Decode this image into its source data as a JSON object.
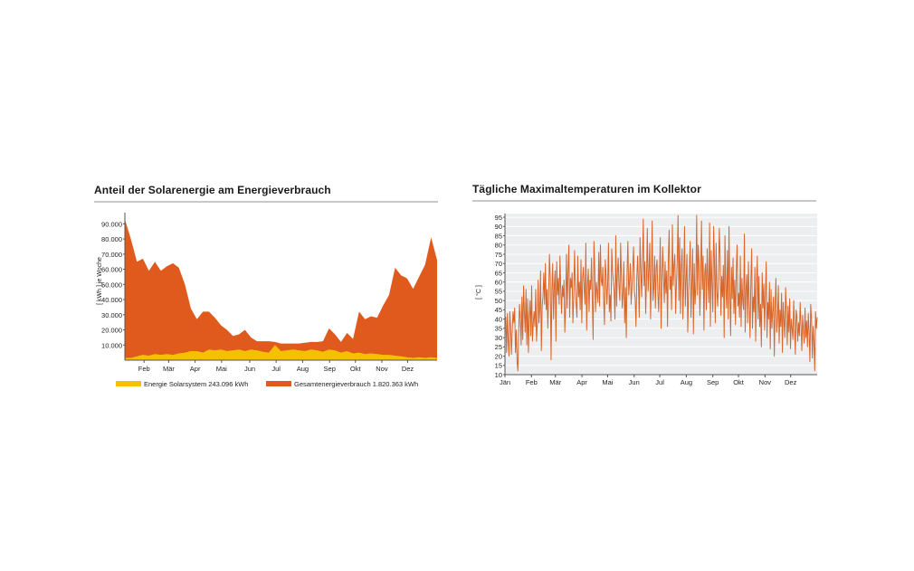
{
  "chart_data": [
    {
      "type": "area",
      "title": "Anteil der Solarenergie am Energieverbrauch",
      "ylabel": "[ kWh ] je Woche",
      "xlabel": "",
      "ylim": [
        0,
        95000
      ],
      "y_ticks": [
        10000,
        20000,
        30000,
        40000,
        50000,
        60000,
        70000,
        80000,
        90000
      ],
      "y_tick_labels": [
        "10.000",
        "20.000",
        "30.000",
        "40.000",
        "50.000",
        "60.000",
        "70.000",
        "80.000",
        "90.000"
      ],
      "x_range": [
        0,
        52
      ],
      "x_ticks": [
        {
          "label": "Feb",
          "week": 3.2
        },
        {
          "label": "Mär",
          "week": 7.3
        },
        {
          "label": "Apr",
          "week": 11.7
        },
        {
          "label": "Mai",
          "week": 16.1
        },
        {
          "label": "Jun",
          "week": 20.8
        },
        {
          "label": "Jul",
          "week": 25.2
        },
        {
          "label": "Aug",
          "week": 29.6
        },
        {
          "label": "Sep",
          "week": 34.1
        },
        {
          "label": "Okt",
          "week": 38.4
        },
        {
          "label": "Nov",
          "week": 42.8
        },
        {
          "label": "Dez",
          "week": 47.1
        }
      ],
      "grid": false,
      "legend_position": "bottom",
      "series": [
        {
          "name": "Gesamtenergieverbrauch 1.820.363 kWh",
          "color": "#e05a1e",
          "x": [
            0,
            1,
            2,
            3,
            4,
            5,
            6,
            7,
            8,
            9,
            10,
            11,
            12,
            13,
            14,
            15,
            16,
            17,
            18,
            19,
            20,
            21,
            22,
            23,
            24,
            25,
            26,
            27,
            28,
            29,
            30,
            31,
            32,
            33,
            34,
            35,
            36,
            37,
            38,
            39,
            40,
            41,
            42,
            43,
            44,
            45,
            46,
            47,
            48,
            49,
            50,
            51,
            52
          ],
          "values": [
            93000,
            80000,
            65000,
            67000,
            59000,
            65000,
            59000,
            62000,
            64000,
            61000,
            50000,
            34000,
            27000,
            32000,
            32000,
            28000,
            23000,
            20000,
            16000,
            17000,
            20000,
            15000,
            12500,
            12500,
            12500,
            12000,
            11000,
            11000,
            11000,
            11000,
            11500,
            12000,
            12000,
            12500,
            21000,
            17000,
            12000,
            18000,
            14000,
            32000,
            27000,
            29000,
            28000,
            36000,
            43000,
            61000,
            56000,
            54000,
            47000,
            55000,
            63000,
            81000,
            66000
          ]
        },
        {
          "name": "Energie Solarsystem 243.096 kWh",
          "color": "#f5c000",
          "x": [
            0,
            1,
            2,
            3,
            4,
            5,
            6,
            7,
            8,
            9,
            10,
            11,
            12,
            13,
            14,
            15,
            16,
            17,
            18,
            19,
            20,
            21,
            22,
            23,
            24,
            25,
            26,
            27,
            28,
            29,
            30,
            31,
            32,
            33,
            34,
            35,
            36,
            37,
            38,
            39,
            40,
            41,
            42,
            43,
            44,
            45,
            46,
            47,
            48,
            49,
            50,
            51,
            52
          ],
          "values": [
            1500,
            1500,
            2500,
            3500,
            3000,
            4000,
            3500,
            4000,
            3500,
            4500,
            5000,
            6000,
            6000,
            5000,
            7000,
            6500,
            7000,
            6000,
            6500,
            7000,
            6000,
            7000,
            6500,
            5500,
            5000,
            10000,
            6000,
            6500,
            7000,
            6500,
            6000,
            7000,
            6500,
            5500,
            7000,
            6500,
            5000,
            6000,
            4500,
            5000,
            4000,
            4500,
            4000,
            3500,
            3500,
            3000,
            2500,
            2000,
            1500,
            2000,
            1500,
            2000,
            1500
          ]
        }
      ]
    },
    {
      "type": "line",
      "title": "Tägliche Maximaltemperaturen im Kollektor",
      "ylabel": "[ °C ]",
      "xlabel": "",
      "ylim": [
        10,
        97
      ],
      "y_ticks": [
        10,
        15,
        20,
        25,
        30,
        35,
        40,
        45,
        50,
        55,
        60,
        65,
        70,
        75,
        80,
        85,
        90,
        95
      ],
      "x_range": [
        0,
        365
      ],
      "x_ticks": [
        {
          "label": "Jän",
          "day": 0
        },
        {
          "label": "Feb",
          "day": 31
        },
        {
          "label": "Mär",
          "day": 59
        },
        {
          "label": "Apr",
          "day": 90
        },
        {
          "label": "Mai",
          "day": 120
        },
        {
          "label": "Jun",
          "day": 151
        },
        {
          "label": "Jul",
          "day": 181
        },
        {
          "label": "Aug",
          "day": 212
        },
        {
          "label": "Sep",
          "day": 243
        },
        {
          "label": "Okt",
          "day": 273
        },
        {
          "label": "Nov",
          "day": 304
        },
        {
          "label": "Dez",
          "day": 334
        }
      ],
      "grid": true,
      "series": [
        {
          "color": "#d8662a",
          "values": [
            40,
            41,
            22,
            43,
            28,
            20,
            44,
            35,
            21,
            34,
            44,
            38,
            46,
            22,
            34,
            17,
            12,
            34,
            48,
            40,
            26,
            52,
            29,
            58,
            44,
            33,
            56,
            26,
            51,
            22,
            41,
            50,
            31,
            58,
            28,
            38,
            44,
            36,
            56,
            28,
            37,
            61,
            38,
            45,
            66,
            23,
            47,
            52,
            65,
            48,
            70,
            45,
            56,
            35,
            53,
            75,
            62,
            18,
            55,
            70,
            40,
            58,
            66,
            28,
            71,
            53,
            62,
            48,
            74,
            56,
            43,
            58,
            52,
            61,
            33,
            47,
            75,
            46,
            66,
            80,
            41,
            62,
            57,
            65,
            38,
            51,
            77,
            58,
            48,
            41,
            74,
            52,
            60,
            45,
            72,
            38,
            62,
            68,
            56,
            48,
            81,
            34,
            58,
            67,
            44,
            61,
            56,
            73,
            50,
            29,
            82,
            68,
            44,
            60,
            55,
            49,
            76,
            47,
            80,
            61,
            58,
            68,
            51,
            37,
            72,
            64,
            48,
            59,
            81,
            44,
            53,
            39,
            78,
            66,
            60,
            55,
            40,
            85,
            47,
            65,
            73,
            58,
            50,
            81,
            63,
            46,
            54,
            71,
            38,
            57,
            30,
            66,
            82,
            53,
            60,
            70,
            48,
            57,
            68,
            79,
            55,
            51,
            36,
            62,
            74,
            60,
            41,
            84,
            66,
            52,
            70,
            94,
            58,
            71,
            43,
            62,
            89,
            55,
            66,
            81,
            40,
            60,
            93,
            50,
            57,
            74,
            46,
            68,
            72,
            55,
            44,
            61,
            84,
            35,
            59,
            79,
            63,
            49,
            71,
            54,
            66,
            36,
            73,
            88,
            56,
            63,
            45,
            91,
            58,
            69,
            75,
            43,
            59,
            72,
            96,
            50,
            84,
            43,
            68,
            78,
            40,
            60,
            90,
            47,
            62,
            75,
            33,
            55,
            67,
            82,
            41,
            58,
            78,
            32,
            70,
            48,
            57,
            96,
            53,
            80,
            69,
            42,
            62,
            93,
            56,
            74,
            34,
            65,
            70,
            45,
            78,
            61,
            49,
            92,
            36,
            77,
            59,
            44,
            90,
            71,
            38,
            81,
            55,
            47,
            60,
            89,
            74,
            42,
            63,
            52,
            69,
            30,
            85,
            57,
            46,
            77,
            40,
            90,
            55,
            31,
            68,
            51,
            73,
            43,
            61,
            37,
            66,
            80,
            47,
            54,
            41,
            74,
            36,
            62,
            50,
            45,
            86,
            33,
            56,
            64,
            38,
            71,
            49,
            30,
            60,
            78,
            35,
            52,
            44,
            68,
            28,
            57,
            74,
            40,
            63,
            36,
            48,
            25,
            65,
            46,
            59,
            34,
            53,
            71,
            30,
            49,
            40,
            60,
            24,
            56,
            35,
            44,
            52,
            20,
            47,
            62,
            33,
            41,
            58,
            27,
            45,
            36,
            54,
            22,
            49,
            39,
            30,
            57,
            42,
            26,
            47,
            33,
            51,
            24,
            40,
            35,
            29,
            50,
            37,
            21,
            45,
            41,
            28,
            38,
            31,
            49,
            36,
            23,
            42,
            34,
            27,
            46,
            30,
            39,
            25,
            43,
            33,
            17,
            48,
            40,
            19,
            36,
            28,
            12,
            44,
            35,
            41
          ]
        }
      ]
    }
  ]
}
